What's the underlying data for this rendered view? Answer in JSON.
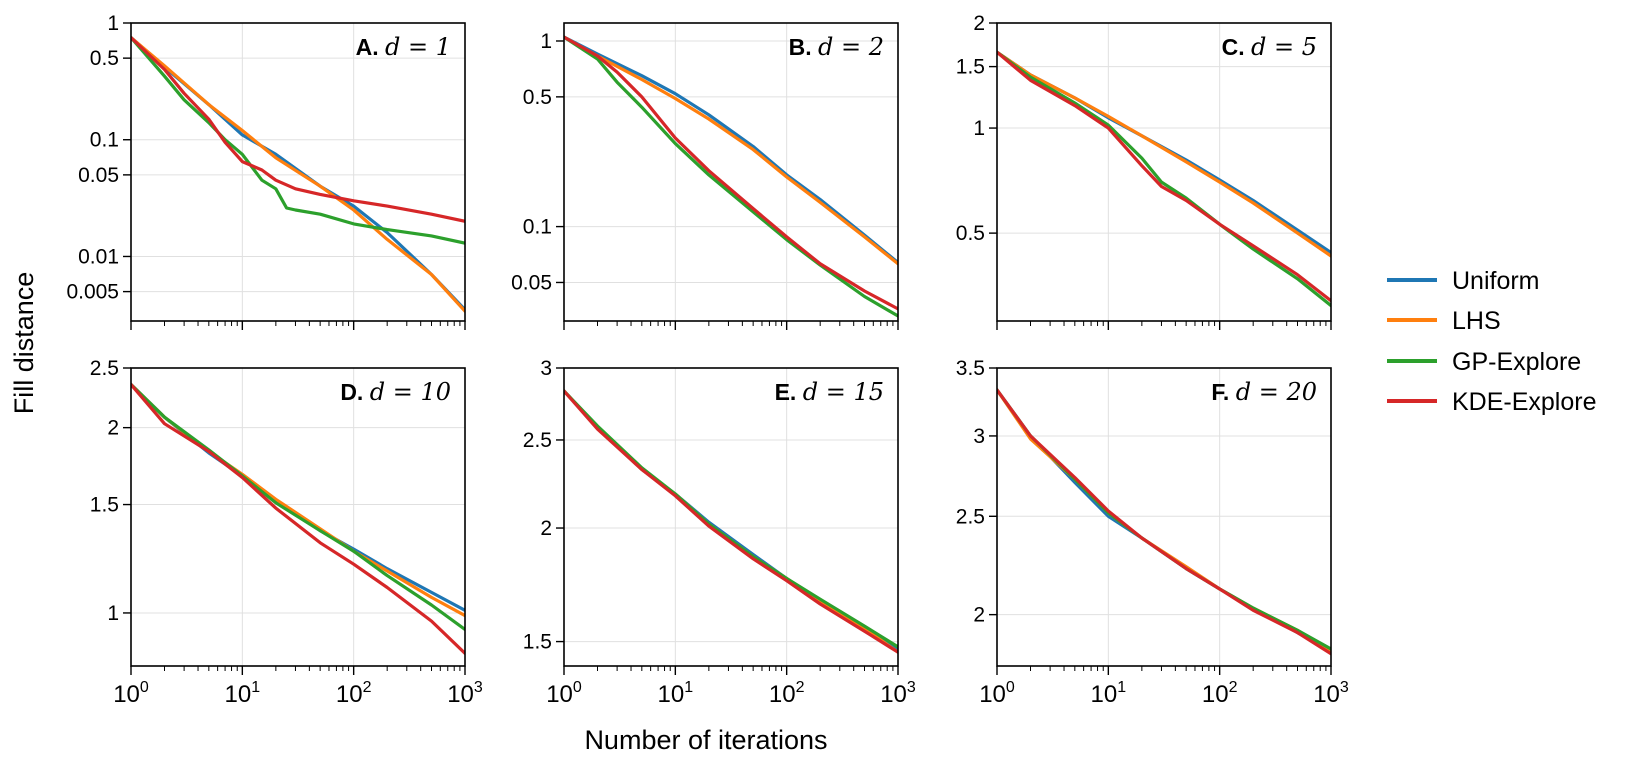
{
  "figure": {
    "ylabel": "Fill distance",
    "xlabel": "Number of iterations",
    "legend": [
      {
        "name": "Uniform",
        "color": "#1f77b4"
      },
      {
        "name": "LHS",
        "color": "#ff7f0e"
      },
      {
        "name": "GP-Explore",
        "color": "#2ca02c"
      },
      {
        "name": "KDE-Explore",
        "color": "#d62728"
      }
    ]
  },
  "chart_data": [
    {
      "type": "line",
      "panel": "A.",
      "label": "d = 1",
      "xscale": "log",
      "yscale": "log",
      "xlim": [
        1,
        1000
      ],
      "ylim": [
        0.0028,
        1
      ],
      "xticks": [
        {
          "v": 1,
          "b": "10",
          "e": "0"
        },
        {
          "v": 10,
          "b": "10",
          "e": "1"
        },
        {
          "v": 100,
          "b": "10",
          "e": "2"
        },
        {
          "v": 1000,
          "b": "10",
          "e": "3"
        }
      ],
      "yticks": [
        {
          "v": 1,
          "t": "1"
        },
        {
          "v": 0.5,
          "t": "0.5"
        },
        {
          "v": 0.1,
          "t": "0.1"
        },
        {
          "v": 0.05,
          "t": "0.05"
        },
        {
          "v": 0.01,
          "t": "0.01"
        },
        {
          "v": 0.005,
          "t": "0.005"
        }
      ],
      "series": [
        {
          "name": "Uniform",
          "x": [
            1,
            2,
            5,
            10,
            20,
            50,
            100,
            200,
            500,
            1000
          ],
          "y": [
            0.75,
            0.42,
            0.2,
            0.11,
            0.075,
            0.04,
            0.027,
            0.016,
            0.007,
            0.0035
          ]
        },
        {
          "name": "LHS",
          "x": [
            1,
            2,
            5,
            10,
            20,
            50,
            100,
            200,
            500,
            1000
          ],
          "y": [
            0.75,
            0.43,
            0.2,
            0.12,
            0.07,
            0.04,
            0.025,
            0.014,
            0.007,
            0.0034
          ]
        },
        {
          "name": "GP-Explore",
          "x": [
            1,
            2,
            3,
            5,
            7,
            10,
            15,
            20,
            25,
            30,
            50,
            100,
            200,
            500,
            1000
          ],
          "y": [
            0.75,
            0.35,
            0.22,
            0.14,
            0.1,
            0.075,
            0.045,
            0.038,
            0.026,
            0.025,
            0.023,
            0.019,
            0.017,
            0.015,
            0.013
          ]
        },
        {
          "name": "KDE-Explore",
          "x": [
            1,
            2,
            3,
            5,
            7,
            10,
            15,
            20,
            30,
            50,
            100,
            200,
            500,
            1000
          ],
          "y": [
            0.75,
            0.4,
            0.25,
            0.15,
            0.095,
            0.065,
            0.055,
            0.045,
            0.038,
            0.034,
            0.03,
            0.027,
            0.023,
            0.02
          ]
        }
      ]
    },
    {
      "type": "line",
      "panel": "B.",
      "label": "d = 2",
      "xscale": "log",
      "yscale": "log",
      "xlim": [
        1,
        1000
      ],
      "ylim": [
        0.031,
        1.25
      ],
      "xticks": [
        {
          "v": 1,
          "b": "10",
          "e": "0"
        },
        {
          "v": 10,
          "b": "10",
          "e": "1"
        },
        {
          "v": 100,
          "b": "10",
          "e": "2"
        },
        {
          "v": 1000,
          "b": "10",
          "e": "3"
        }
      ],
      "yticks": [
        {
          "v": 1,
          "t": "1"
        },
        {
          "v": 0.5,
          "t": "0.5"
        },
        {
          "v": 0.1,
          "t": "0.1"
        },
        {
          "v": 0.05,
          "t": "0.05"
        }
      ],
      "series": [
        {
          "name": "Uniform",
          "x": [
            1,
            2,
            5,
            10,
            20,
            50,
            100,
            200,
            500,
            1000
          ],
          "y": [
            1.05,
            0.85,
            0.65,
            0.52,
            0.4,
            0.27,
            0.19,
            0.14,
            0.09,
            0.064
          ]
        },
        {
          "name": "LHS",
          "x": [
            1,
            2,
            5,
            10,
            20,
            50,
            100,
            200,
            500,
            1000
          ],
          "y": [
            1.05,
            0.83,
            0.62,
            0.49,
            0.38,
            0.26,
            0.185,
            0.135,
            0.088,
            0.063
          ]
        },
        {
          "name": "GP-Explore",
          "x": [
            1,
            2,
            3,
            5,
            10,
            20,
            50,
            100,
            200,
            500,
            1000
          ],
          "y": [
            1.05,
            0.8,
            0.6,
            0.44,
            0.28,
            0.19,
            0.12,
            0.085,
            0.062,
            0.042,
            0.033
          ]
        },
        {
          "name": "KDE-Explore",
          "x": [
            1,
            2,
            3,
            5,
            10,
            20,
            50,
            100,
            200,
            500,
            1000
          ],
          "y": [
            1.05,
            0.83,
            0.68,
            0.5,
            0.3,
            0.2,
            0.125,
            0.088,
            0.063,
            0.045,
            0.036
          ]
        }
      ]
    },
    {
      "type": "line",
      "panel": "C.",
      "label": "d = 5",
      "xscale": "log",
      "yscale": "log",
      "xlim": [
        1,
        1000
      ],
      "ylim": [
        0.28,
        2
      ],
      "xticks": [
        {
          "v": 1,
          "b": "10",
          "e": "0"
        },
        {
          "v": 10,
          "b": "10",
          "e": "1"
        },
        {
          "v": 100,
          "b": "10",
          "e": "2"
        },
        {
          "v": 1000,
          "b": "10",
          "e": "3"
        }
      ],
      "yticks": [
        {
          "v": 2,
          "t": "2"
        },
        {
          "v": 1.5,
          "t": "1.5"
        },
        {
          "v": 1,
          "t": "1"
        },
        {
          "v": 0.5,
          "t": "0.5"
        }
      ],
      "series": [
        {
          "name": "Uniform",
          "x": [
            1,
            2,
            5,
            10,
            20,
            50,
            100,
            200,
            500,
            1000
          ],
          "y": [
            1.65,
            1.42,
            1.22,
            1.07,
            0.95,
            0.81,
            0.71,
            0.62,
            0.51,
            0.44
          ]
        },
        {
          "name": "LHS",
          "x": [
            1,
            2,
            5,
            10,
            20,
            50,
            100,
            200,
            500,
            1000
          ],
          "y": [
            1.65,
            1.42,
            1.22,
            1.08,
            0.95,
            0.8,
            0.7,
            0.61,
            0.5,
            0.43
          ]
        },
        {
          "name": "GP-Explore",
          "x": [
            1,
            2,
            5,
            10,
            20,
            30,
            50,
            100,
            200,
            500,
            1000
          ],
          "y": [
            1.65,
            1.4,
            1.18,
            1.02,
            0.82,
            0.7,
            0.63,
            0.53,
            0.45,
            0.37,
            0.31
          ]
        },
        {
          "name": "KDE-Explore",
          "x": [
            1,
            2,
            5,
            10,
            20,
            30,
            50,
            100,
            200,
            500,
            1000
          ],
          "y": [
            1.65,
            1.37,
            1.16,
            1.0,
            0.78,
            0.68,
            0.62,
            0.53,
            0.46,
            0.38,
            0.32
          ]
        }
      ]
    },
    {
      "type": "line",
      "panel": "D.",
      "label": "d = 10",
      "xscale": "log",
      "yscale": "log",
      "xlim": [
        1,
        1000
      ],
      "ylim": [
        0.82,
        2.5
      ],
      "xticks": [
        {
          "v": 1,
          "b": "10",
          "e": "0"
        },
        {
          "v": 10,
          "b": "10",
          "e": "1"
        },
        {
          "v": 100,
          "b": "10",
          "e": "2"
        },
        {
          "v": 1000,
          "b": "10",
          "e": "3"
        }
      ],
      "yticks": [
        {
          "v": 2.5,
          "t": "2.5"
        },
        {
          "v": 2,
          "t": "2"
        },
        {
          "v": 1.5,
          "t": "1.5"
        },
        {
          "v": 1,
          "t": "1"
        }
      ],
      "series": [
        {
          "name": "Uniform",
          "x": [
            1,
            2,
            5,
            10,
            20,
            50,
            100,
            200,
            500,
            1000
          ],
          "y": [
            2.35,
            2.08,
            1.82,
            1.67,
            1.52,
            1.36,
            1.27,
            1.18,
            1.08,
            1.01
          ]
        },
        {
          "name": "LHS",
          "x": [
            1,
            2,
            5,
            10,
            20,
            50,
            100,
            200,
            500,
            1000
          ],
          "y": [
            2.35,
            2.08,
            1.83,
            1.68,
            1.53,
            1.37,
            1.26,
            1.17,
            1.06,
            0.99
          ]
        },
        {
          "name": "GP-Explore",
          "x": [
            1,
            2,
            5,
            10,
            20,
            50,
            100,
            200,
            500,
            1000
          ],
          "y": [
            2.35,
            2.08,
            1.84,
            1.67,
            1.51,
            1.36,
            1.26,
            1.15,
            1.03,
            0.94
          ]
        },
        {
          "name": "KDE-Explore",
          "x": [
            1,
            2,
            5,
            10,
            20,
            50,
            100,
            200,
            500,
            1000
          ],
          "y": [
            2.35,
            2.03,
            1.83,
            1.66,
            1.48,
            1.3,
            1.2,
            1.1,
            0.97,
            0.86
          ]
        }
      ]
    },
    {
      "type": "line",
      "panel": "E.",
      "label": "d = 15",
      "xscale": "log",
      "yscale": "log",
      "xlim": [
        1,
        1000
      ],
      "ylim": [
        1.41,
        3
      ],
      "xticks": [
        {
          "v": 1,
          "b": "10",
          "e": "0"
        },
        {
          "v": 10,
          "b": "10",
          "e": "1"
        },
        {
          "v": 100,
          "b": "10",
          "e": "2"
        },
        {
          "v": 1000,
          "b": "10",
          "e": "3"
        }
      ],
      "yticks": [
        {
          "v": 3,
          "t": "3"
        },
        {
          "v": 2.5,
          "t": "2.5"
        },
        {
          "v": 2,
          "t": "2"
        },
        {
          "v": 1.5,
          "t": "1.5"
        }
      ],
      "series": [
        {
          "name": "Uniform",
          "x": [
            1,
            2,
            5,
            10,
            20,
            50,
            100,
            200,
            500,
            1000
          ],
          "y": [
            2.83,
            2.58,
            2.32,
            2.18,
            2.03,
            1.87,
            1.76,
            1.66,
            1.55,
            1.47
          ]
        },
        {
          "name": "LHS",
          "x": [
            1,
            2,
            5,
            10,
            20,
            50,
            100,
            200,
            500,
            1000
          ],
          "y": [
            2.83,
            2.58,
            2.32,
            2.18,
            2.02,
            1.86,
            1.76,
            1.66,
            1.55,
            1.46
          ]
        },
        {
          "name": "GP-Explore",
          "x": [
            1,
            2,
            5,
            10,
            20,
            50,
            100,
            200,
            500,
            1000
          ],
          "y": [
            2.83,
            2.59,
            2.33,
            2.18,
            2.02,
            1.86,
            1.76,
            1.67,
            1.56,
            1.48
          ]
        },
        {
          "name": "KDE-Explore",
          "x": [
            1,
            2,
            5,
            10,
            20,
            50,
            100,
            200,
            500,
            1000
          ],
          "y": [
            2.83,
            2.57,
            2.32,
            2.17,
            2.01,
            1.85,
            1.75,
            1.65,
            1.54,
            1.46
          ]
        }
      ]
    },
    {
      "type": "line",
      "panel": "F.",
      "label": "d = 20",
      "xscale": "log",
      "yscale": "log",
      "xlim": [
        1,
        1000
      ],
      "ylim": [
        1.78,
        3.5
      ],
      "xticks": [
        {
          "v": 1,
          "b": "10",
          "e": "0"
        },
        {
          "v": 10,
          "b": "10",
          "e": "1"
        },
        {
          "v": 100,
          "b": "10",
          "e": "2"
        },
        {
          "v": 1000,
          "b": "10",
          "e": "3"
        }
      ],
      "yticks": [
        {
          "v": 3.5,
          "t": "3.5"
        },
        {
          "v": 3,
          "t": "3"
        },
        {
          "v": 2.5,
          "t": "2.5"
        },
        {
          "v": 2,
          "t": "2"
        }
      ],
      "series": [
        {
          "name": "Uniform",
          "x": [
            1,
            2,
            5,
            10,
            20,
            50,
            100,
            200,
            500,
            1000
          ],
          "y": [
            3.33,
            3.0,
            2.7,
            2.5,
            2.38,
            2.22,
            2.12,
            2.03,
            1.92,
            1.84
          ]
        },
        {
          "name": "LHS",
          "x": [
            1,
            2,
            5,
            10,
            20,
            50,
            100,
            200,
            500,
            1000
          ],
          "y": [
            3.33,
            2.98,
            2.72,
            2.52,
            2.38,
            2.23,
            2.12,
            2.03,
            1.93,
            1.84
          ]
        },
        {
          "name": "GP-Explore",
          "x": [
            1,
            2,
            5,
            10,
            20,
            50,
            100,
            200,
            500,
            1000
          ],
          "y": [
            3.33,
            3.0,
            2.72,
            2.52,
            2.38,
            2.22,
            2.12,
            2.03,
            1.93,
            1.85
          ]
        },
        {
          "name": "KDE-Explore",
          "x": [
            1,
            2,
            5,
            10,
            20,
            50,
            100,
            200,
            500,
            1000
          ],
          "y": [
            3.33,
            3.0,
            2.73,
            2.53,
            2.38,
            2.22,
            2.12,
            2.02,
            1.92,
            1.83
          ]
        }
      ]
    }
  ]
}
